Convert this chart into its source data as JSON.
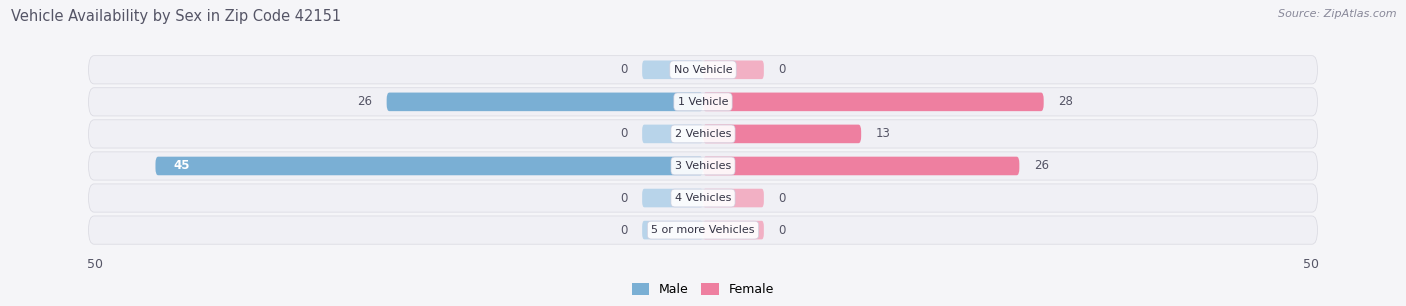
{
  "title": "Vehicle Availability by Sex in Zip Code 42151",
  "source": "Source: ZipAtlas.com",
  "categories": [
    "No Vehicle",
    "1 Vehicle",
    "2 Vehicles",
    "3 Vehicles",
    "4 Vehicles",
    "5 or more Vehicles"
  ],
  "male_values": [
    0,
    26,
    0,
    45,
    0,
    0
  ],
  "female_values": [
    0,
    28,
    13,
    26,
    0,
    0
  ],
  "male_color": "#7aafd4",
  "female_color": "#ee7fa0",
  "male_color_light": "#b8d4ea",
  "female_color_light": "#f2b0c4",
  "row_color": "#f0f0f5",
  "row_color_alt": "#e8e8f0",
  "bg_color": "#f5f5f8",
  "axis_limit": 50,
  "title_fontsize": 10.5,
  "source_fontsize": 8,
  "label_fontsize": 8.5,
  "tick_fontsize": 9,
  "category_fontsize": 8,
  "stub_size": 5
}
